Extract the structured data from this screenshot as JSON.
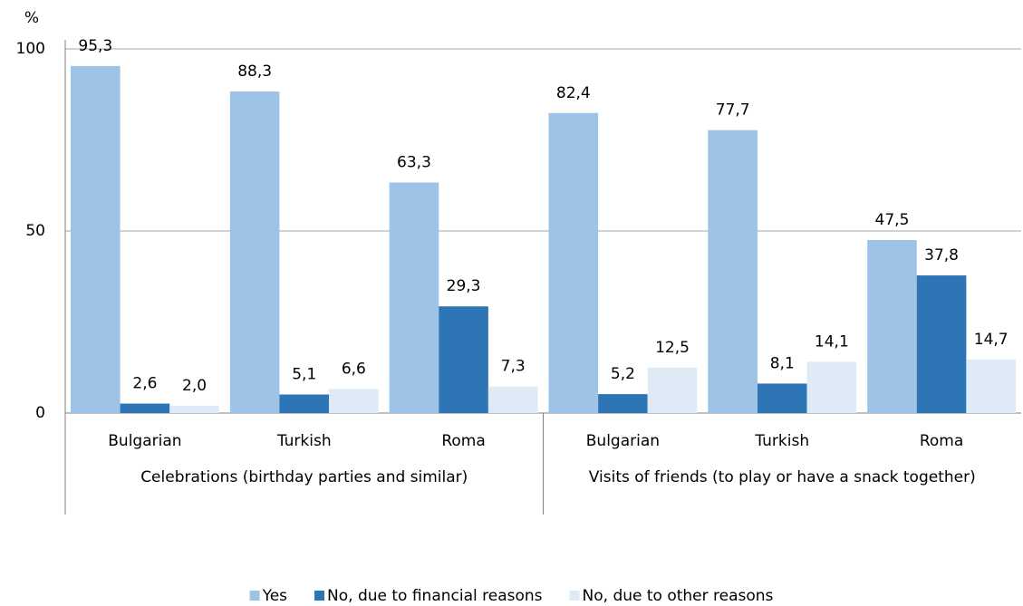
{
  "chart_data": {
    "type": "bar",
    "y_label": "%",
    "category_groups": [
      {
        "name": "Celebrations (birthday parties and similar)",
        "categories": [
          "Bulgarian",
          "Turkish",
          "Roma"
        ]
      },
      {
        "name": "Visits of friends (to play or have a snack together)",
        "categories": [
          "Bulgarian",
          "Turkish",
          "Roma"
        ]
      }
    ],
    "series": [
      {
        "name": "Yes",
        "color": "#9dc3e6",
        "values": [
          95.3,
          88.3,
          63.3,
          82.4,
          77.7,
          47.5
        ],
        "value_labels": [
          "95,3",
          "88,3",
          "63,3",
          "82,4",
          "77,7",
          "47,5"
        ]
      },
      {
        "name": "No, due to financial reasons",
        "color": "#2e75b6",
        "values": [
          2.6,
          5.1,
          29.3,
          5.2,
          8.1,
          37.8
        ],
        "value_labels": [
          "2,6",
          "5,1",
          "29,3",
          "5,2",
          "8,1",
          "37,8"
        ]
      },
      {
        "name": "No, due to other reasons",
        "color": "#deebf7",
        "values": [
          2.0,
          6.6,
          7.3,
          12.5,
          14.1,
          14.7
        ],
        "value_labels": [
          "2,0",
          "6,6",
          "7,3",
          "12,5",
          "14,1",
          "14,7"
        ]
      }
    ],
    "ylim": [
      0,
      100
    ],
    "yticks": [
      0,
      50,
      100
    ],
    "grid": true,
    "legend": "bottom"
  }
}
